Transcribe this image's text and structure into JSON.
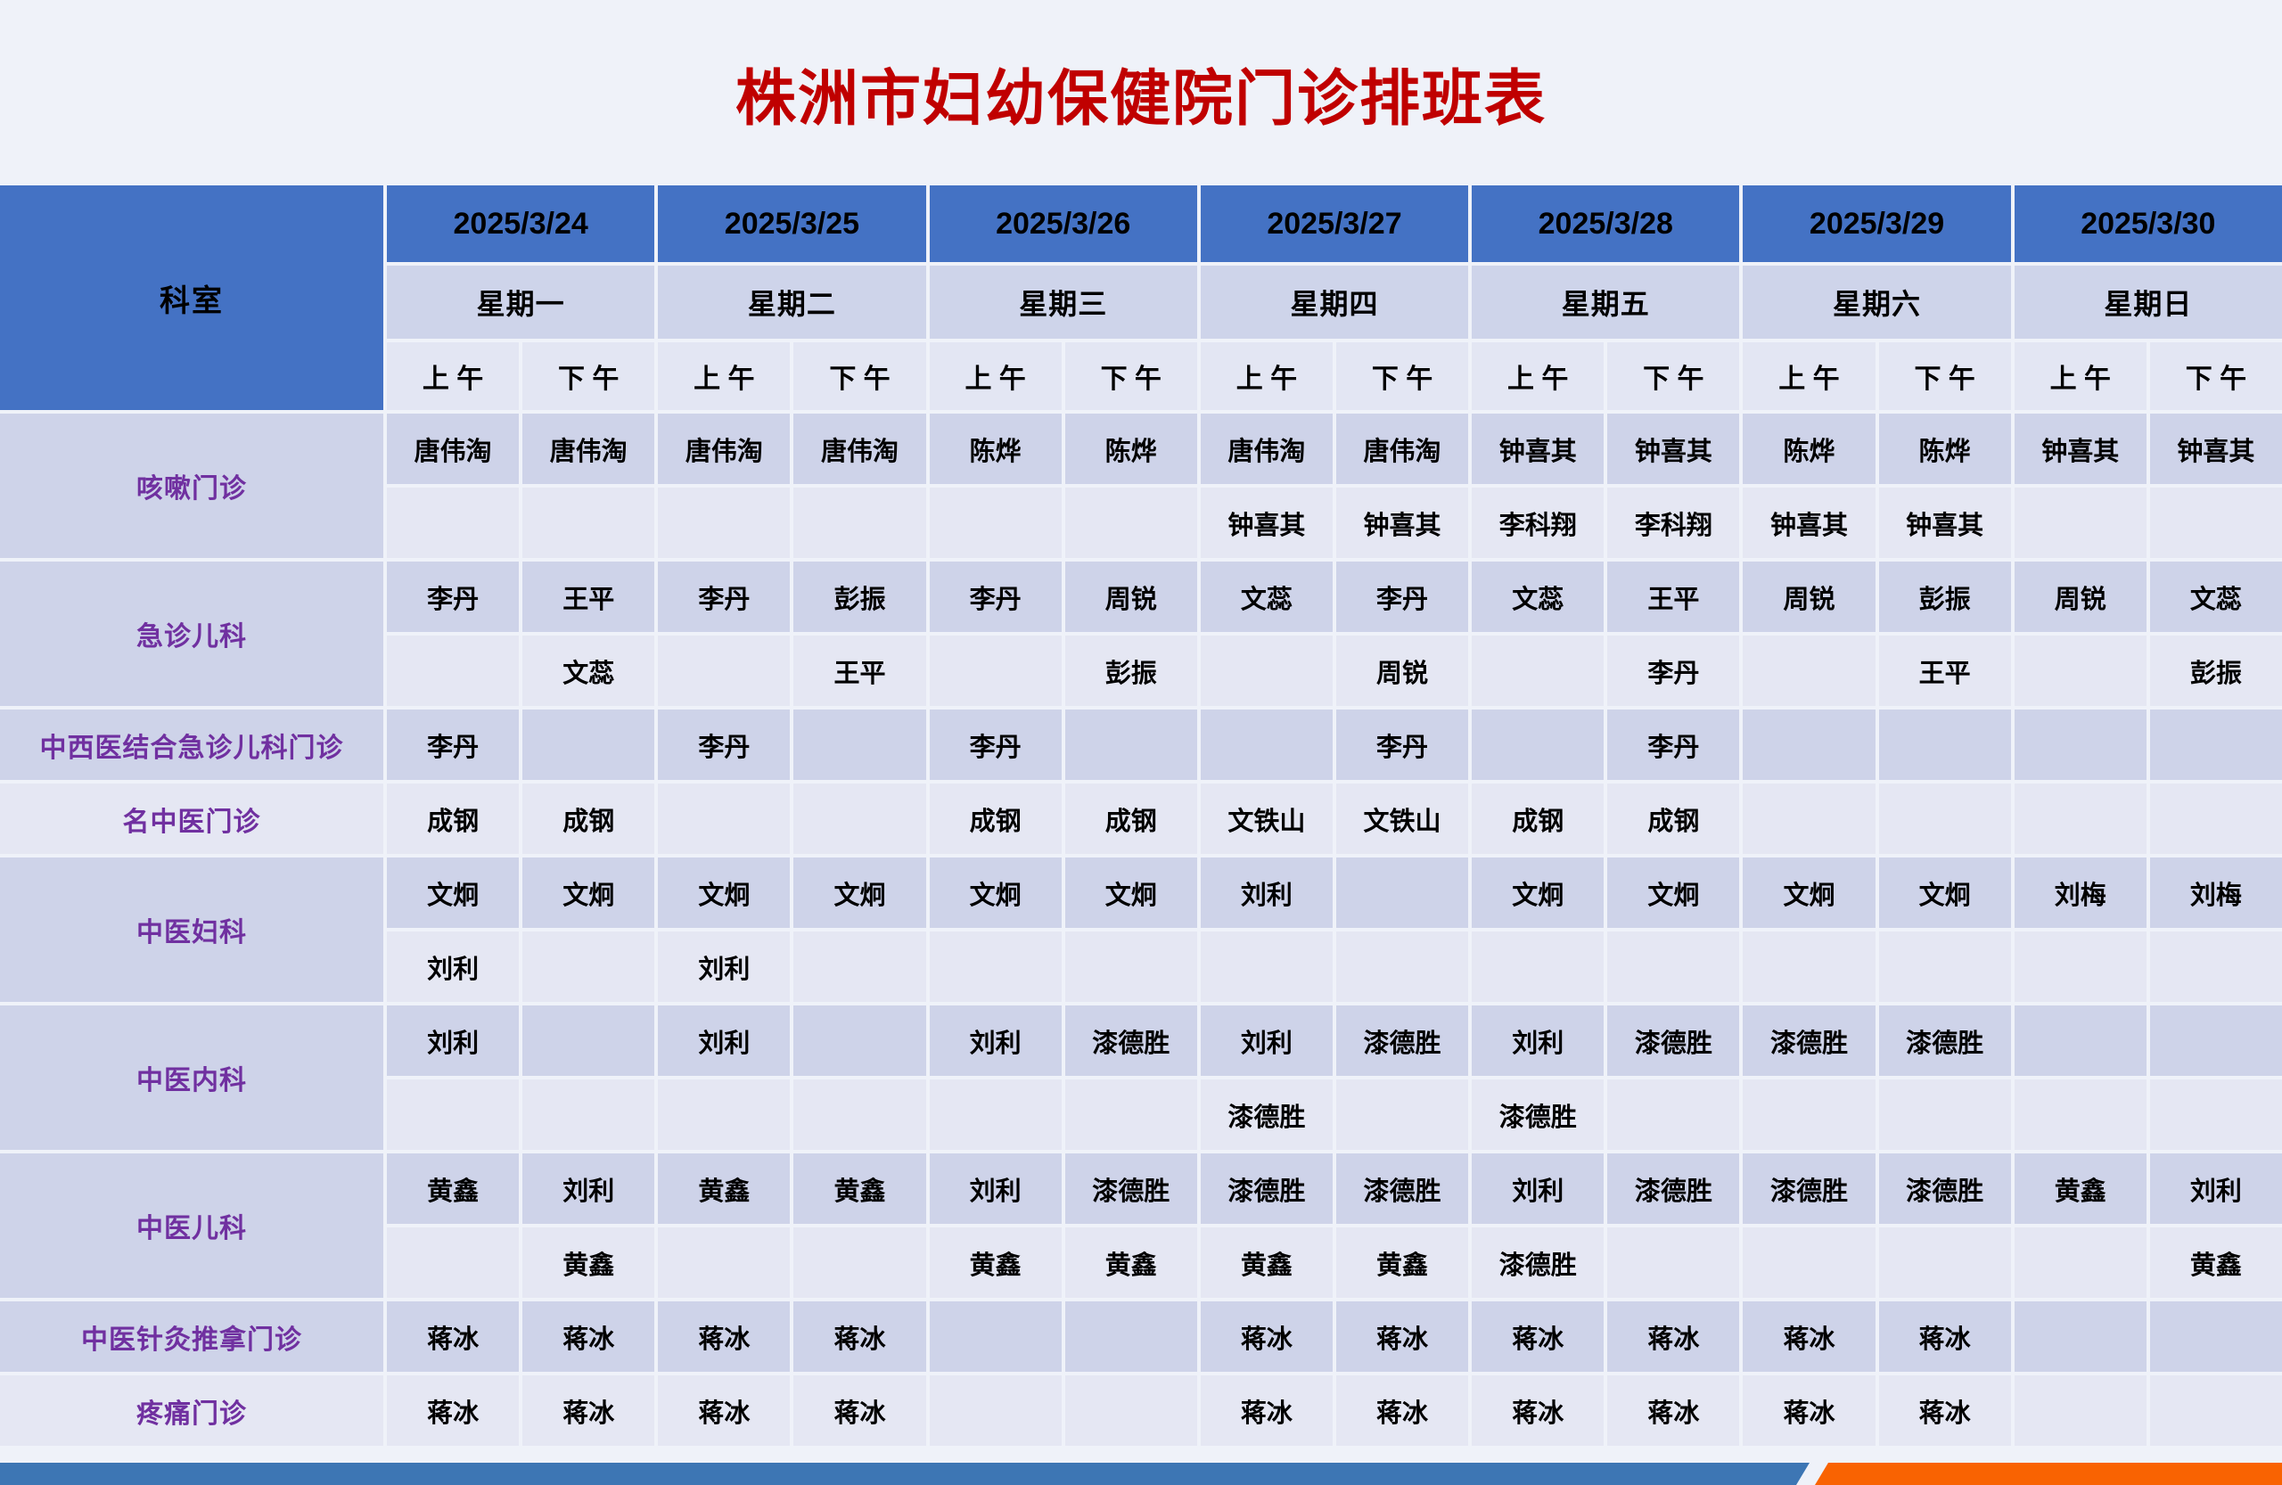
{
  "title": "株洲市妇幼保健院门诊排班表",
  "header": {
    "corner": "科室",
    "days": [
      {
        "date": "2025/3/24",
        "weekday": "星期一"
      },
      {
        "date": "2025/3/25",
        "weekday": "星期二"
      },
      {
        "date": "2025/3/26",
        "weekday": "星期三"
      },
      {
        "date": "2025/3/27",
        "weekday": "星期四"
      },
      {
        "date": "2025/3/28",
        "weekday": "星期五"
      },
      {
        "date": "2025/3/29",
        "weekday": "星期六"
      },
      {
        "date": "2025/3/30",
        "weekday": "星期日"
      }
    ],
    "am": "上 午",
    "pm": "下 午"
  },
  "departments": [
    {
      "name": "咳嗽门诊",
      "rows": [
        [
          "唐伟淘",
          "唐伟淘",
          "唐伟淘",
          "唐伟淘",
          "陈烨",
          "陈烨",
          "唐伟淘",
          "唐伟淘",
          "钟喜其",
          "钟喜其",
          "陈烨",
          "陈烨",
          "钟喜其",
          "钟喜其"
        ],
        [
          "",
          "",
          "",
          "",
          "",
          "",
          "钟喜其",
          "钟喜其",
          "李科翔",
          "李科翔",
          "钟喜其",
          "钟喜其",
          "",
          ""
        ]
      ]
    },
    {
      "name": "急诊儿科",
      "rows": [
        [
          "李丹",
          "王平",
          "李丹",
          "彭振",
          "李丹",
          "周锐",
          "文蕊",
          "李丹",
          "文蕊",
          "王平",
          "周锐",
          "彭振",
          "周锐",
          "文蕊"
        ],
        [
          "",
          "文蕊",
          "",
          "王平",
          "",
          "彭振",
          "",
          "周锐",
          "",
          "李丹",
          "",
          "王平",
          "",
          "彭振"
        ]
      ]
    },
    {
      "name": "中西医结合急诊儿科门诊",
      "rows": [
        [
          "李丹",
          "",
          "李丹",
          "",
          "李丹",
          "",
          "",
          "李丹",
          "",
          "李丹",
          "",
          "",
          "",
          ""
        ]
      ]
    },
    {
      "name": "名中医门诊",
      "rows": [
        [
          "成钢",
          "成钢",
          "",
          "",
          "成钢",
          "成钢",
          "文铁山",
          "文铁山",
          "成钢",
          "成钢",
          "",
          "",
          "",
          ""
        ]
      ]
    },
    {
      "name": "中医妇科",
      "rows": [
        [
          "文炯",
          "文炯",
          "文炯",
          "文炯",
          "文炯",
          "文炯",
          "刘利",
          "",
          "文炯",
          "文炯",
          "文炯",
          "文炯",
          "刘梅",
          "刘梅"
        ],
        [
          "刘利",
          "",
          "刘利",
          "",
          "",
          "",
          "",
          "",
          "",
          "",
          "",
          "",
          "",
          ""
        ]
      ]
    },
    {
      "name": "中医内科",
      "rows": [
        [
          "刘利",
          "",
          "刘利",
          "",
          "刘利",
          "漆德胜",
          "刘利",
          "漆德胜",
          "刘利",
          "漆德胜",
          "漆德胜",
          "漆德胜",
          "",
          ""
        ],
        [
          "",
          "",
          "",
          "",
          "",
          "",
          "漆德胜",
          "",
          "漆德胜",
          "",
          "",
          "",
          "",
          ""
        ]
      ]
    },
    {
      "name": "中医儿科",
      "rows": [
        [
          "黄鑫",
          "刘利",
          "黄鑫",
          "黄鑫",
          "刘利",
          "漆德胜",
          "漆德胜",
          "漆德胜",
          "刘利",
          "漆德胜",
          "漆德胜",
          "漆德胜",
          "黄鑫",
          "刘利"
        ],
        [
          "",
          "黄鑫",
          "",
          "",
          "黄鑫",
          "黄鑫",
          "黄鑫",
          "黄鑫",
          "漆德胜",
          "",
          "",
          "",
          "",
          "黄鑫"
        ]
      ]
    },
    {
      "name": "中医针灸推拿门诊",
      "rows": [
        [
          "蒋冰",
          "蒋冰",
          "蒋冰",
          "蒋冰",
          "",
          "",
          "蒋冰",
          "蒋冰",
          "蒋冰",
          "蒋冰",
          "蒋冰",
          "蒋冰",
          "",
          ""
        ]
      ]
    },
    {
      "name": "疼痛门诊",
      "rows": [
        [
          "蒋冰",
          "蒋冰",
          "蒋冰",
          "蒋冰",
          "",
          "",
          "蒋冰",
          "蒋冰",
          "蒋冰",
          "蒋冰",
          "蒋冰",
          "蒋冰",
          "",
          ""
        ]
      ]
    }
  ],
  "colors": {
    "title_red": "#C00000",
    "header_blue": "#4472C4",
    "band_dark": "#CED3E9",
    "band_light": "#E5E7F3",
    "weekday_bg": "#CED4EA",
    "session_bg": "#E3E6F3",
    "dept_text": "#7030A0",
    "footer_blue": "#3D76B4",
    "footer_orange": "#F96302"
  }
}
